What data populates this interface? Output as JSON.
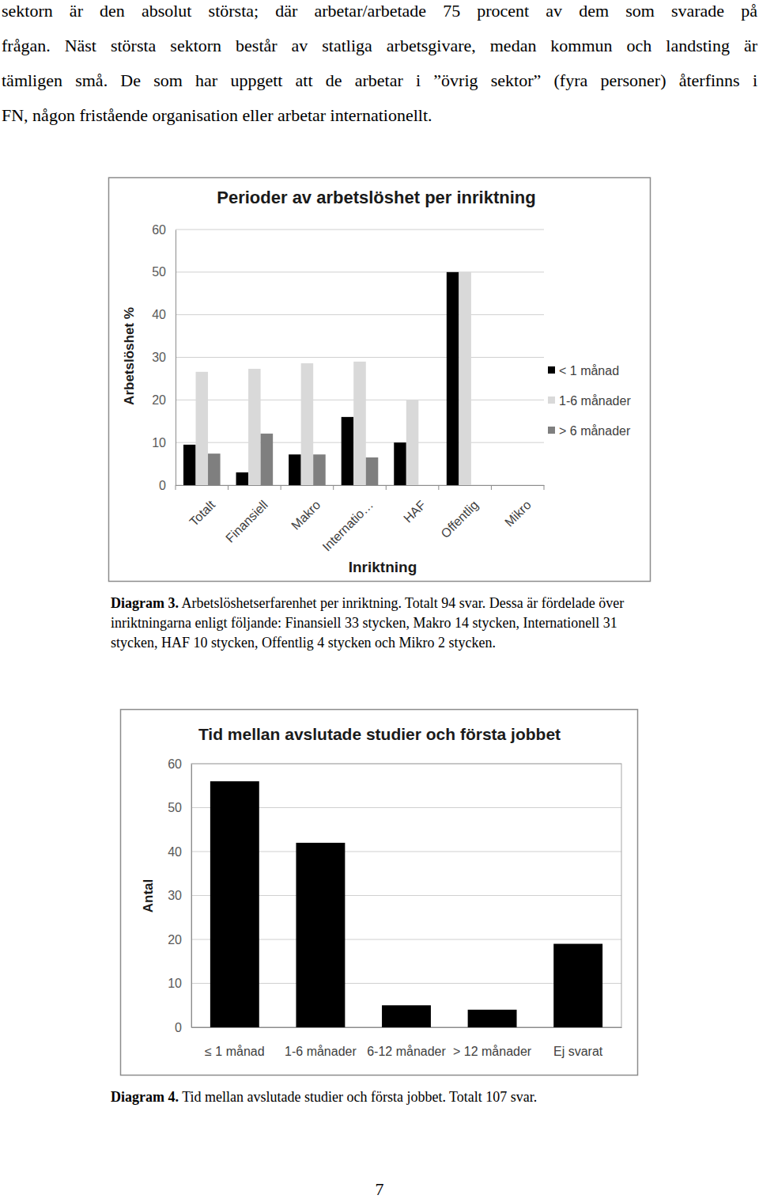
{
  "text": [
    "sektorn är den absolut största; där arbetar/arbetade 75 procent av dem som svarade på",
    "frågan. Näst största sektorn består av statliga arbetsgivare, medan kommun och landsting är",
    "tämligen små. De som har uppgett att de arbetar i ”övrig sektor” (fyra personer) återfinns i",
    "FN, någon fristående organisation eller arbetar internationellt."
  ],
  "chart_data": [
    {
      "type": "bar",
      "title": "Perioder av arbetslöshet per inriktning",
      "x_label": "Inriktning",
      "y_label": "Arbetslöshet %",
      "categories": [
        "Totalt",
        "Finansiell",
        "Makro",
        "Internatio…",
        "HAF",
        "Offentlig",
        "Mikro"
      ],
      "series": [
        {
          "name": "< 1 månad",
          "color": "#000000",
          "values": [
            9.5,
            3,
            7.2,
            16,
            10,
            50,
            0
          ]
        },
        {
          "name": "1-6 månader",
          "color": "#d9d9d9",
          "values": [
            26.6,
            27.3,
            28.6,
            29,
            20,
            50,
            0
          ]
        },
        {
          "name": "> 6 månader",
          "color": "#7f7f7f",
          "values": [
            7.4,
            12.1,
            7.2,
            6.5,
            0,
            0,
            0
          ]
        }
      ],
      "ylim": [
        0,
        60
      ],
      "yticks": [
        0,
        10,
        20,
        30,
        40,
        50,
        60
      ],
      "grid": true,
      "legend": "right"
    },
    {
      "type": "bar",
      "title": "Tid mellan avslutade studier och första jobbet",
      "y_label": "Antal",
      "categories": [
        "≤ 1 månad",
        "1-6 månader",
        "6-12 månader",
        "> 12 månader",
        "Ej svarat"
      ],
      "values": [
        56,
        42,
        5,
        4,
        19
      ],
      "color": "#000000",
      "ylim": [
        0,
        60
      ],
      "yticks": [
        0,
        10,
        20,
        30,
        40,
        50,
        60
      ],
      "grid": true
    }
  ],
  "captions": [
    {
      "label": "Diagram 3.",
      "text": "Arbetslöshetserfarenhet per inriktning. Totalt 94 svar. Dessa är fördelade över inriktningarna enligt följande: Finansiell 33 stycken, Makro 14 stycken, Internationell 31 stycken, HAF 10 stycken, Offentlig 4 stycken och Mikro 2 stycken."
    },
    {
      "label": "Diagram 4.",
      "text": "Tid mellan avslutade studier och första jobbet. Totalt 107 svar."
    }
  ],
  "page_number": "7"
}
